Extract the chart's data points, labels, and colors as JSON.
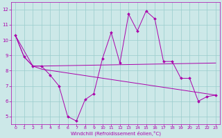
{
  "xlabel": "Windchill (Refroidissement éolien,°C)",
  "xlim": [
    -0.5,
    23.5
  ],
  "ylim": [
    4.5,
    12.5
  ],
  "yticks": [
    5,
    6,
    7,
    8,
    9,
    10,
    11,
    12
  ],
  "xticks": [
    0,
    1,
    2,
    3,
    4,
    5,
    6,
    7,
    8,
    9,
    10,
    11,
    12,
    13,
    14,
    15,
    16,
    17,
    18,
    19,
    20,
    21,
    22,
    23
  ],
  "background_color": "#cce8e8",
  "grid_color": "#99cccc",
  "line_color": "#aa00aa",
  "series": {
    "line1_jagged": {
      "x": [
        0,
        1,
        2,
        3,
        4,
        5,
        6,
        7,
        8,
        9,
        10,
        11,
        12,
        13,
        14,
        15,
        16,
        17,
        18,
        19,
        20,
        21,
        22,
        23
      ],
      "y": [
        10.3,
        8.9,
        8.3,
        8.3,
        7.7,
        7.0,
        5.0,
        4.7,
        6.1,
        6.5,
        8.8,
        10.5,
        8.5,
        11.7,
        10.6,
        11.9,
        11.4,
        8.6,
        8.6,
        7.5,
        7.5,
        6.0,
        6.3,
        6.4
      ]
    },
    "line2_upper": {
      "x": [
        0,
        1,
        2,
        3,
        23
      ],
      "y": [
        10.3,
        8.9,
        8.3,
        8.3,
        8.5
      ]
    },
    "line3_lower": {
      "x": [
        0,
        2,
        3,
        23
      ],
      "y": [
        10.3,
        8.3,
        8.1,
        6.4
      ]
    }
  }
}
